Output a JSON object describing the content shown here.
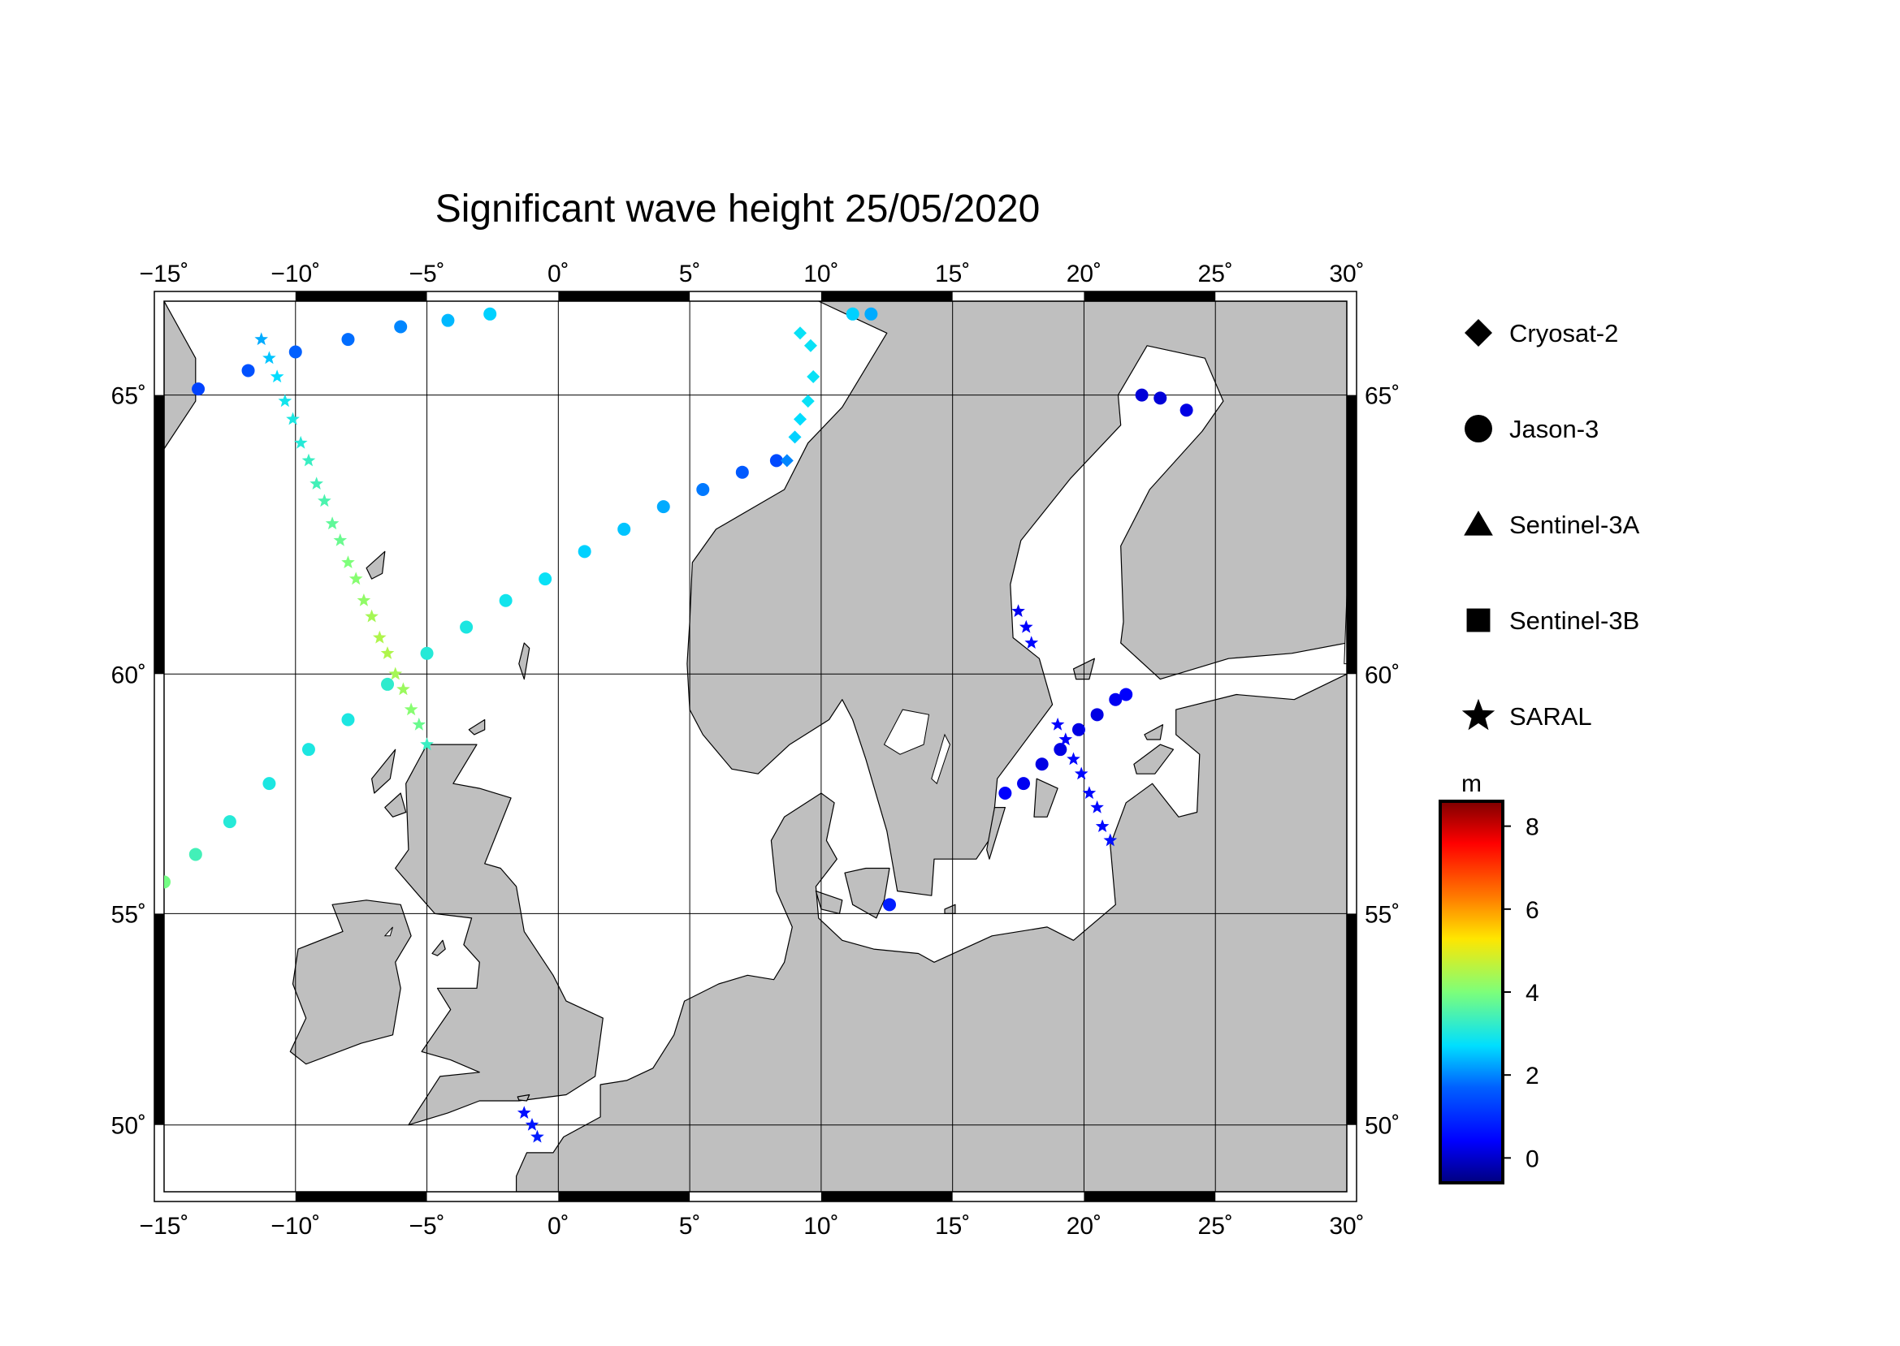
{
  "title": "Significant wave height 25/05/2020",
  "map": {
    "lon_range": [
      -15,
      30
    ],
    "lat_range": [
      48.3,
      66.5
    ],
    "lon_ticks": [
      -15,
      -10,
      -5,
      0,
      5,
      10,
      15,
      20,
      25,
      30
    ],
    "lat_ticks": [
      50,
      55,
      60,
      65
    ],
    "lon_tick_labels": [
      "−15˚",
      "−10˚",
      "−5˚",
      "0˚",
      "5˚",
      "10˚",
      "15˚",
      "20˚",
      "25˚",
      "30˚"
    ],
    "lat_tick_labels": [
      "50˚",
      "55˚",
      "60˚",
      "65˚"
    ],
    "land_color": "#bfbfbf",
    "sea_color": "#ffffff",
    "grid": true
  },
  "legend": {
    "items": [
      {
        "label": "Cryosat-2",
        "marker": "diamond"
      },
      {
        "label": "Jason-3",
        "marker": "circle"
      },
      {
        "label": "Sentinel-3A",
        "marker": "triangle"
      },
      {
        "label": "Sentinel-3B",
        "marker": "square"
      },
      {
        "label": "SARAL",
        "marker": "star"
      }
    ]
  },
  "colorbar": {
    "unit": "m",
    "min": -0.6,
    "max": 8.6,
    "ticks": [
      0,
      2,
      4,
      6,
      8
    ],
    "tick_labels": [
      "0",
      "2",
      "4",
      "6",
      "8"
    ],
    "colormap": "jet"
  },
  "chart_data": {
    "type": "scatter",
    "x_name": "longitude (°)",
    "y_name": "latitude (°)",
    "value_name": "significant wave height (m)",
    "series": [
      {
        "name": "Jason-3",
        "marker": "circle",
        "points": [
          [
            -13.7,
            65.1,
            1.3
          ],
          [
            -11.8,
            65.4,
            1.5
          ],
          [
            -10.0,
            65.7,
            1.7
          ],
          [
            -8.0,
            65.9,
            1.8
          ],
          [
            -6.0,
            66.1,
            2.0
          ],
          [
            -4.2,
            66.2,
            2.4
          ],
          [
            -2.6,
            66.3,
            2.6
          ]
        ]
      },
      {
        "name": "Jason-3",
        "marker": "circle",
        "points": [
          [
            -15.0,
            55.7,
            3.9
          ],
          [
            -13.8,
            56.3,
            3.4
          ],
          [
            -12.5,
            57.0,
            3.1
          ],
          [
            -11.0,
            57.8,
            3.0
          ],
          [
            -9.5,
            58.5,
            3.0
          ],
          [
            -8.0,
            59.1,
            3.0
          ],
          [
            -6.5,
            59.8,
            3.2
          ],
          [
            -5.0,
            60.4,
            3.1
          ],
          [
            -3.5,
            60.9,
            3.0
          ],
          [
            -2.0,
            61.4,
            2.9
          ],
          [
            -0.5,
            61.8,
            2.8
          ],
          [
            1.0,
            62.3,
            2.6
          ],
          [
            2.5,
            62.7,
            2.5
          ],
          [
            4.0,
            63.1,
            2.3
          ],
          [
            5.5,
            63.4,
            1.9
          ],
          [
            7.0,
            63.7,
            1.6
          ],
          [
            8.3,
            63.9,
            1.4
          ]
        ]
      },
      {
        "name": "Jason-3",
        "marker": "circle",
        "points": [
          [
            11.2,
            66.3,
            2.6
          ],
          [
            11.9,
            66.3,
            2.3
          ]
        ]
      },
      {
        "name": "Jason-3",
        "marker": "circle",
        "points": [
          [
            17.0,
            57.6,
            0.4
          ],
          [
            17.7,
            57.8,
            0.3
          ],
          [
            18.4,
            58.2,
            0.2
          ],
          [
            19.1,
            58.5,
            0.2
          ],
          [
            19.8,
            58.9,
            0.2
          ],
          [
            20.5,
            59.2,
            0.2
          ],
          [
            21.2,
            59.5,
            0.3
          ],
          [
            21.6,
            59.6,
            0.4
          ]
        ]
      },
      {
        "name": "Jason-3",
        "marker": "circle",
        "points": [
          [
            12.6,
            55.2,
            0.8
          ]
        ]
      },
      {
        "name": "Jason-3",
        "marker": "circle",
        "points": [
          [
            22.2,
            65.0,
            0.1
          ],
          [
            22.9,
            64.95,
            0.1
          ],
          [
            23.9,
            64.75,
            0.2
          ]
        ]
      },
      {
        "name": "Cryosat-2",
        "marker": "diamond",
        "points": [
          [
            9.2,
            66.0,
            2.8
          ],
          [
            9.6,
            65.8,
            2.8
          ],
          [
            9.7,
            65.3,
            2.8
          ],
          [
            9.5,
            64.9,
            2.8
          ],
          [
            9.2,
            64.6,
            2.7
          ],
          [
            9.0,
            64.3,
            2.6
          ],
          [
            8.7,
            63.9,
            2.0
          ]
        ]
      },
      {
        "name": "SARAL",
        "marker": "star",
        "points": [
          [
            -11.3,
            65.9,
            2.3
          ],
          [
            -11.0,
            65.6,
            2.5
          ],
          [
            -10.7,
            65.3,
            2.7
          ],
          [
            -10.4,
            64.9,
            2.9
          ],
          [
            -10.1,
            64.6,
            3.0
          ],
          [
            -9.8,
            64.2,
            3.1
          ],
          [
            -9.5,
            63.9,
            3.3
          ],
          [
            -9.2,
            63.5,
            3.4
          ],
          [
            -8.9,
            63.2,
            3.5
          ],
          [
            -8.6,
            62.8,
            3.7
          ],
          [
            -8.3,
            62.5,
            3.8
          ],
          [
            -8.0,
            62.1,
            4.0
          ],
          [
            -7.7,
            61.8,
            4.1
          ],
          [
            -7.4,
            61.4,
            4.2
          ],
          [
            -7.1,
            61.1,
            4.4
          ],
          [
            -6.8,
            60.7,
            4.5
          ],
          [
            -6.5,
            60.4,
            4.5
          ],
          [
            -6.2,
            60.0,
            4.4
          ],
          [
            -5.9,
            59.7,
            4.3
          ],
          [
            -5.6,
            59.3,
            4.1
          ],
          [
            -5.3,
            59.0,
            3.8
          ],
          [
            -5.0,
            58.6,
            3.3
          ]
        ]
      },
      {
        "name": "SARAL",
        "marker": "star",
        "points": [
          [
            17.5,
            61.2,
            0.3
          ],
          [
            17.8,
            60.9,
            0.4
          ],
          [
            18.0,
            60.6,
            0.5
          ]
        ]
      },
      {
        "name": "SARAL",
        "marker": "star",
        "points": [
          [
            19.0,
            59.0,
            0.4
          ],
          [
            19.3,
            58.7,
            0.4
          ],
          [
            19.6,
            58.3,
            0.5
          ],
          [
            19.9,
            58.0,
            0.5
          ],
          [
            20.2,
            57.6,
            0.5
          ],
          [
            20.5,
            57.3,
            0.5
          ],
          [
            20.7,
            56.9,
            0.5
          ],
          [
            21.0,
            56.6,
            0.6
          ]
        ]
      },
      {
        "name": "SARAL",
        "marker": "star",
        "points": [
          [
            -1.3,
            50.3,
            0.6
          ],
          [
            -1.0,
            50.0,
            0.7
          ],
          [
            -0.8,
            49.7,
            0.8
          ]
        ]
      }
    ]
  }
}
